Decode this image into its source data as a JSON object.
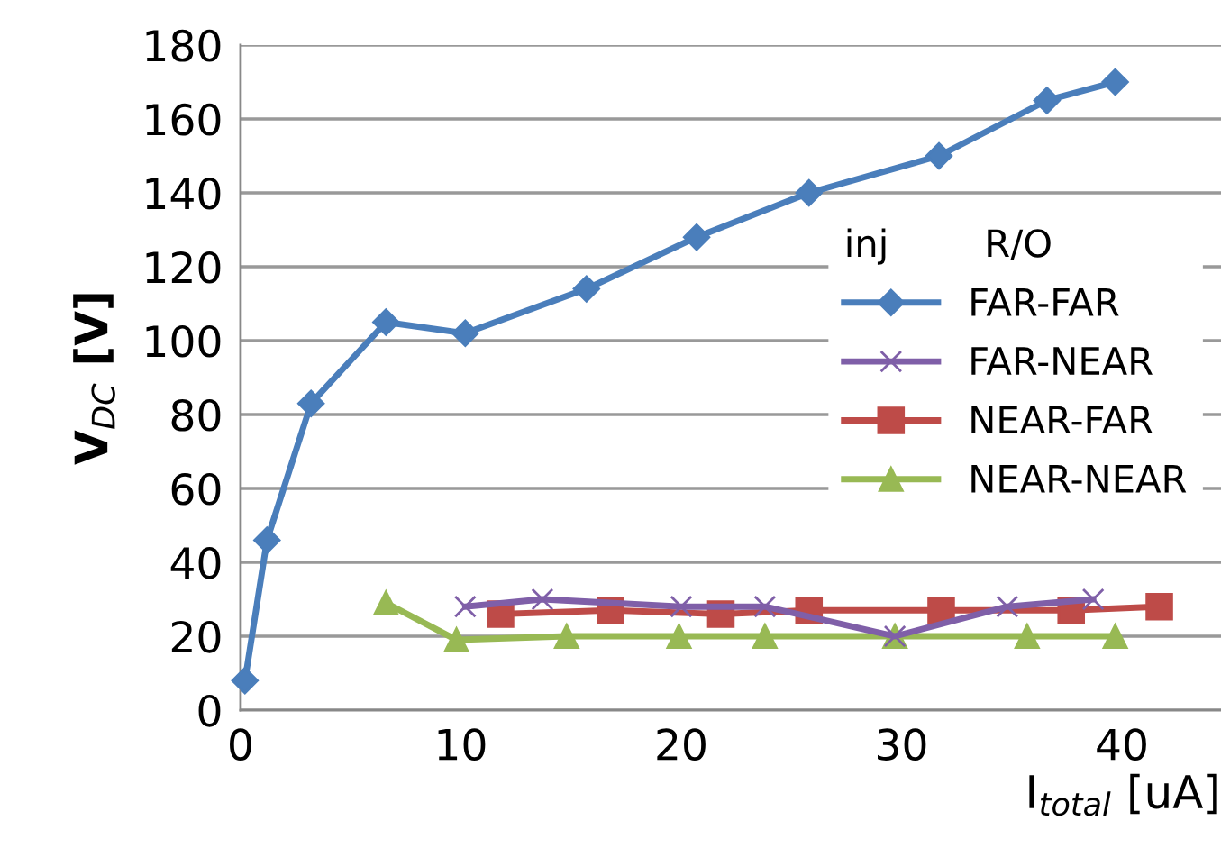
{
  "chart_data": {
    "type": "line",
    "xlabel": "I$_{total}$ [uA]",
    "ylabel": "V$_{DC}$ [V]",
    "legend_title": "inj        R/O",
    "xlim": [
      0,
      44.5
    ],
    "xticks": [
      0,
      10,
      20,
      30,
      40
    ],
    "ylim": [
      0,
      180
    ],
    "yticks": [
      0,
      20,
      40,
      60,
      80,
      100,
      120,
      140,
      160,
      180
    ],
    "grid": "y",
    "legend": "right",
    "line_style": "solid",
    "series": [
      {
        "name": "FAR-FAR",
        "color": "#4a7ebb",
        "marker": "diamond",
        "x": [
          0.2,
          1.2,
          3.2,
          6.6,
          10.2,
          15.7,
          20.7,
          25.8,
          31.7,
          36.6,
          39.7
        ],
        "values": [
          8,
          46,
          83,
          105,
          102,
          114,
          128,
          140,
          150,
          165,
          170
        ]
      },
      {
        "name": "FAR-NEAR",
        "color": "#7f5fa8",
        "marker": "cross",
        "x": [
          10.2,
          13.7,
          20,
          23.8,
          29.7,
          34.8,
          38.7
        ],
        "values": [
          28,
          30,
          28,
          28,
          20,
          28,
          30
        ]
      },
      {
        "name": "NEAR-FAR",
        "color": "#be4b48",
        "marker": "square",
        "x": [
          11.8,
          16.8,
          21.8,
          25.8,
          31.8,
          37.7,
          41.7
        ],
        "values": [
          26,
          27,
          26,
          27,
          27,
          27,
          28
        ]
      },
      {
        "name": "NEAR-NEAR",
        "color": "#98b954",
        "marker": "triangle",
        "x": [
          6.6,
          9.8,
          14.8,
          19.9,
          23.8,
          29.7,
          35.7,
          39.7
        ],
        "values": [
          29,
          19,
          20,
          20,
          20,
          20,
          20,
          20
        ]
      }
    ]
  }
}
